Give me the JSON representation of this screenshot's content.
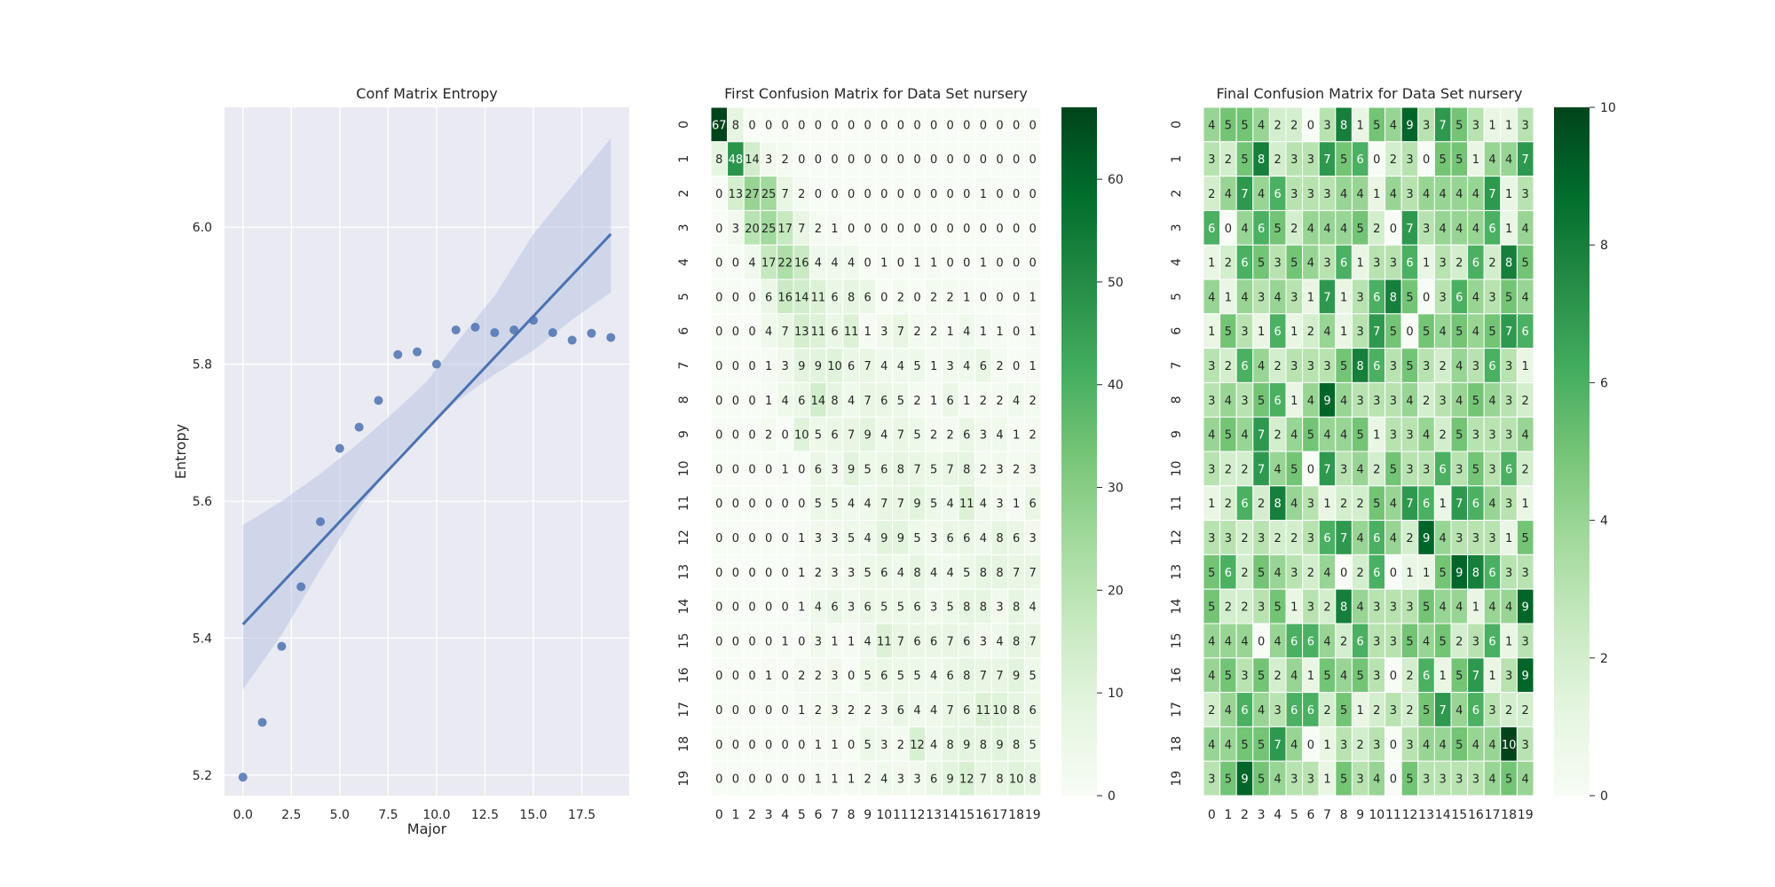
{
  "chart_data": [
    {
      "type": "scatter",
      "title": "Conf Matrix Entropy",
      "xlabel": "Major",
      "ylabel": "Entropy",
      "xlim": [
        -0.95,
        19.95
      ],
      "ylim": [
        5.17,
        6.175
      ],
      "xticks": [
        0.0,
        2.5,
        5.0,
        7.5,
        10.0,
        12.5,
        15.0,
        17.5
      ],
      "xtick_labels": [
        "0.0",
        "2.5",
        "5.0",
        "7.5",
        "10.0",
        "12.5",
        "15.0",
        "17.5"
      ],
      "yticks": [
        5.2,
        5.4,
        5.6,
        5.8,
        6.0
      ],
      "ytick_labels": [
        "5.2",
        "5.4",
        "5.6",
        "5.8",
        "6.0"
      ],
      "grid": true,
      "x": [
        0,
        1,
        2,
        3,
        4,
        5,
        6,
        7,
        8,
        9,
        10,
        11,
        12,
        13,
        14,
        15,
        16,
        17,
        18,
        19
      ],
      "y": [
        5.197,
        5.277,
        5.388,
        5.475,
        5.57,
        5.677,
        5.708,
        5.747,
        5.814,
        5.818,
        5.8,
        5.85,
        5.854,
        5.846,
        5.85,
        5.864,
        5.846,
        5.835,
        5.845,
        5.839
      ],
      "regression": {
        "x": [
          0,
          19
        ],
        "y": [
          5.42,
          5.99
        ],
        "ci_lower": [
          [
            0,
            5.325
          ],
          [
            2,
            5.405
          ],
          [
            4,
            5.5
          ],
          [
            6,
            5.59
          ],
          [
            8,
            5.665
          ],
          [
            9.5,
            5.705
          ],
          [
            11,
            5.745
          ],
          [
            13,
            5.785
          ],
          [
            15,
            5.82
          ],
          [
            17,
            5.865
          ],
          [
            19,
            5.905
          ]
        ],
        "ci_upper": [
          [
            0,
            5.565
          ],
          [
            2,
            5.6
          ],
          [
            4,
            5.64
          ],
          [
            6,
            5.685
          ],
          [
            8,
            5.735
          ],
          [
            9.5,
            5.775
          ],
          [
            11,
            5.83
          ],
          [
            13,
            5.9
          ],
          [
            15,
            5.99
          ],
          [
            17,
            6.06
          ],
          [
            19,
            6.13
          ]
        ]
      },
      "colors": {
        "point": "#4c72b0",
        "line": "#4c72b0",
        "band": "#b3c1e1",
        "axes_bg": "#eaeaf2",
        "grid": "#ffffff"
      }
    },
    {
      "type": "heatmap",
      "title": "First Confusion Matrix for Data Set nursery",
      "row_labels": [
        "0",
        "1",
        "2",
        "3",
        "4",
        "5",
        "6",
        "7",
        "8",
        "9",
        "10",
        "11",
        "12",
        "13",
        "14",
        "15",
        "16",
        "17",
        "18",
        "19"
      ],
      "col_labels": [
        "0",
        "1",
        "2",
        "3",
        "4",
        "5",
        "6",
        "7",
        "8",
        "9",
        "10",
        "11",
        "12",
        "13",
        "14",
        "15",
        "16",
        "17",
        "18",
        "19"
      ],
      "vmin": 0,
      "vmax": 67,
      "colorbar_ticks": [
        0,
        10,
        20,
        30,
        40,
        50,
        60
      ],
      "colorbar_tick_labels": [
        "0",
        "10",
        "20",
        "30",
        "40",
        "50",
        "60"
      ],
      "matrix": [
        [
          67,
          8,
          0,
          0,
          0,
          0,
          0,
          0,
          0,
          0,
          0,
          0,
          0,
          0,
          0,
          0,
          0,
          0,
          0,
          0
        ],
        [
          8,
          48,
          14,
          3,
          2,
          0,
          0,
          0,
          0,
          0,
          0,
          0,
          0,
          0,
          0,
          0,
          0,
          0,
          0,
          0
        ],
        [
          0,
          13,
          27,
          25,
          7,
          2,
          0,
          0,
          0,
          0,
          0,
          0,
          0,
          0,
          0,
          0,
          1,
          0,
          0,
          0
        ],
        [
          0,
          3,
          20,
          25,
          17,
          7,
          2,
          1,
          0,
          0,
          0,
          0,
          0,
          0,
          0,
          0,
          0,
          0,
          0,
          0
        ],
        [
          0,
          0,
          4,
          17,
          22,
          16,
          4,
          4,
          4,
          0,
          1,
          0,
          1,
          1,
          0,
          0,
          1,
          0,
          0,
          0
        ],
        [
          0,
          0,
          0,
          6,
          16,
          14,
          11,
          6,
          8,
          6,
          0,
          2,
          0,
          2,
          2,
          1,
          0,
          0,
          0,
          1
        ],
        [
          0,
          0,
          0,
          4,
          7,
          13,
          11,
          6,
          11,
          1,
          3,
          7,
          2,
          2,
          1,
          4,
          1,
          1,
          0,
          1
        ],
        [
          0,
          0,
          0,
          1,
          3,
          9,
          9,
          10,
          6,
          7,
          4,
          4,
          5,
          1,
          3,
          4,
          6,
          2,
          0,
          1
        ],
        [
          0,
          0,
          0,
          1,
          4,
          6,
          14,
          8,
          4,
          7,
          6,
          5,
          2,
          1,
          6,
          1,
          2,
          2,
          4,
          2
        ],
        [
          0,
          0,
          0,
          2,
          0,
          10,
          5,
          6,
          7,
          9,
          4,
          7,
          5,
          2,
          2,
          6,
          3,
          4,
          1,
          2
        ],
        [
          0,
          0,
          0,
          0,
          1,
          0,
          6,
          3,
          9,
          5,
          6,
          8,
          7,
          5,
          7,
          8,
          2,
          3,
          2,
          3
        ],
        [
          0,
          0,
          0,
          0,
          0,
          0,
          5,
          5,
          4,
          4,
          7,
          7,
          9,
          5,
          4,
          11,
          4,
          3,
          1,
          6
        ],
        [
          0,
          0,
          0,
          0,
          0,
          1,
          3,
          3,
          5,
          4,
          9,
          9,
          5,
          3,
          6,
          6,
          4,
          8,
          6,
          3
        ],
        [
          0,
          0,
          0,
          0,
          0,
          1,
          2,
          3,
          3,
          5,
          6,
          4,
          8,
          4,
          4,
          5,
          8,
          8,
          7,
          7
        ],
        [
          0,
          0,
          0,
          0,
          0,
          1,
          4,
          6,
          3,
          6,
          5,
          5,
          6,
          3,
          5,
          8,
          8,
          3,
          8,
          4
        ],
        [
          0,
          0,
          0,
          0,
          1,
          0,
          3,
          1,
          1,
          4,
          11,
          7,
          6,
          6,
          7,
          6,
          3,
          4,
          8,
          7
        ],
        [
          0,
          0,
          0,
          1,
          0,
          2,
          2,
          3,
          0,
          5,
          6,
          5,
          5,
          4,
          6,
          8,
          7,
          7,
          9,
          5
        ],
        [
          0,
          0,
          0,
          0,
          0,
          1,
          2,
          3,
          2,
          2,
          3,
          6,
          4,
          4,
          7,
          6,
          11,
          10,
          8,
          6
        ],
        [
          0,
          0,
          0,
          0,
          0,
          0,
          1,
          1,
          0,
          5,
          3,
          2,
          12,
          4,
          8,
          9,
          8,
          9,
          8,
          5
        ],
        [
          0,
          0,
          0,
          0,
          0,
          0,
          1,
          1,
          1,
          2,
          4,
          3,
          3,
          6,
          9,
          12,
          7,
          8,
          10,
          8
        ]
      ],
      "colors": {
        "low": "#f7fcf5",
        "high": "#00441b"
      }
    },
    {
      "type": "heatmap",
      "title": "Final Confusion Matrix for Data Set nursery",
      "row_labels": [
        "0",
        "1",
        "2",
        "3",
        "4",
        "5",
        "6",
        "7",
        "8",
        "9",
        "10",
        "11",
        "12",
        "13",
        "14",
        "15",
        "16",
        "17",
        "18",
        "19"
      ],
      "col_labels": [
        "0",
        "1",
        "2",
        "3",
        "4",
        "5",
        "6",
        "7",
        "8",
        "9",
        "10",
        "11",
        "12",
        "13",
        "14",
        "15",
        "16",
        "17",
        "18",
        "19"
      ],
      "vmin": 0,
      "vmax": 10,
      "colorbar_ticks": [
        0,
        2,
        4,
        6,
        8,
        10
      ],
      "colorbar_tick_labels": [
        "0",
        "2",
        "4",
        "6",
        "8",
        "10"
      ],
      "matrix": [
        [
          4,
          5,
          5,
          4,
          2,
          2,
          0,
          3,
          8,
          1,
          5,
          4,
          9,
          3,
          7,
          5,
          3,
          1,
          1,
          3
        ],
        [
          3,
          2,
          5,
          8,
          2,
          3,
          3,
          7,
          5,
          6,
          0,
          2,
          3,
          0,
          5,
          5,
          1,
          4,
          4,
          7
        ],
        [
          2,
          4,
          7,
          4,
          6,
          3,
          3,
          3,
          4,
          4,
          1,
          4,
          3,
          4,
          4,
          4,
          4,
          7,
          1,
          3
        ],
        [
          6,
          0,
          4,
          6,
          5,
          2,
          4,
          4,
          4,
          5,
          2,
          0,
          7,
          3,
          4,
          4,
          4,
          6,
          1,
          4
        ],
        [
          1,
          2,
          6,
          5,
          3,
          5,
          4,
          3,
          6,
          1,
          3,
          3,
          6,
          1,
          3,
          2,
          6,
          2,
          8,
          5
        ],
        [
          4,
          1,
          4,
          3,
          4,
          3,
          1,
          7,
          1,
          3,
          6,
          8,
          5,
          0,
          3,
          6,
          4,
          3,
          5,
          4
        ],
        [
          1,
          5,
          3,
          1,
          6,
          1,
          2,
          4,
          1,
          3,
          7,
          5,
          0,
          5,
          4,
          5,
          4,
          5,
          7,
          6
        ],
        [
          3,
          2,
          6,
          4,
          2,
          3,
          3,
          3,
          5,
          8,
          6,
          3,
          5,
          3,
          2,
          4,
          3,
          6,
          3,
          1
        ],
        [
          3,
          4,
          3,
          5,
          6,
          1,
          4,
          9,
          4,
          3,
          3,
          3,
          4,
          2,
          3,
          4,
          5,
          4,
          3,
          2
        ],
        [
          4,
          5,
          4,
          7,
          2,
          4,
          5,
          4,
          4,
          5,
          1,
          3,
          3,
          4,
          2,
          5,
          3,
          3,
          3,
          4
        ],
        [
          3,
          2,
          2,
          7,
          4,
          5,
          0,
          7,
          3,
          4,
          2,
          5,
          3,
          3,
          6,
          3,
          5,
          3,
          6,
          2
        ],
        [
          1,
          2,
          6,
          2,
          8,
          4,
          3,
          1,
          2,
          2,
          5,
          4,
          7,
          6,
          1,
          7,
          6,
          4,
          3,
          1
        ],
        [
          3,
          3,
          2,
          3,
          2,
          2,
          3,
          6,
          7,
          4,
          6,
          4,
          2,
          9,
          4,
          3,
          3,
          3,
          1,
          5
        ],
        [
          5,
          6,
          2,
          5,
          4,
          3,
          2,
          4,
          0,
          2,
          6,
          0,
          1,
          1,
          5,
          9,
          8,
          6,
          3,
          3
        ],
        [
          5,
          2,
          2,
          3,
          5,
          1,
          3,
          2,
          8,
          4,
          3,
          3,
          3,
          5,
          4,
          4,
          1,
          4,
          4,
          9
        ],
        [
          4,
          4,
          4,
          0,
          4,
          6,
          6,
          4,
          2,
          6,
          3,
          3,
          5,
          4,
          5,
          2,
          3,
          6,
          1,
          3
        ],
        [
          4,
          5,
          3,
          5,
          2,
          4,
          1,
          5,
          4,
          5,
          3,
          0,
          2,
          6,
          1,
          5,
          7,
          1,
          3,
          9
        ],
        [
          2,
          4,
          6,
          4,
          3,
          6,
          6,
          2,
          5,
          1,
          2,
          3,
          2,
          5,
          7,
          4,
          6,
          3,
          2,
          2
        ],
        [
          4,
          4,
          5,
          5,
          7,
          4,
          0,
          1,
          3,
          2,
          3,
          0,
          3,
          4,
          4,
          5,
          4,
          4,
          10,
          3
        ],
        [
          3,
          5,
          9,
          5,
          4,
          3,
          3,
          1,
          5,
          3,
          4,
          0,
          5,
          3,
          3,
          3,
          3,
          4,
          5,
          4
        ]
      ],
      "colors": {
        "low": "#f7fcf5",
        "high": "#00441b"
      }
    }
  ]
}
